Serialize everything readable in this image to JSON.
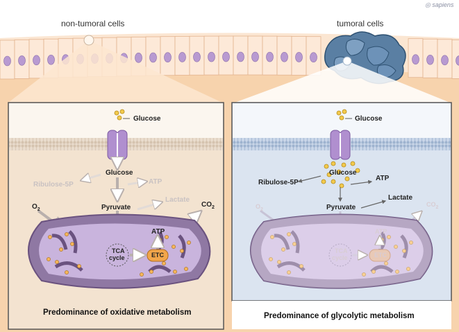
{
  "brand": "sapiens",
  "header": {
    "left_label": "non-tumoral cells",
    "right_label": "tumoral cells"
  },
  "left_panel": {
    "glucose_outside": "Glucose",
    "glucose_inside": "Glucose",
    "ribulose": "Ribulose-5P",
    "atp_glycolysis": "ATP",
    "lactate": "Lactate",
    "o2": "O",
    "o2_sub": "2",
    "pyruvate": "Pyruvate",
    "co2": "CO",
    "co2_sub": "2",
    "atp_mito": "ATP",
    "tca_line1": "TCA",
    "tca_line2": "cycle",
    "etc": "ETC",
    "caption": "Predominance of oxidative metabolism"
  },
  "right_panel": {
    "glucose_outside": "Glucose",
    "glucose_inside": "Glucose",
    "ribulose": "Ribulose-5P",
    "atp_glycolysis": "ATP",
    "lactate": "Lactate",
    "o2": "O",
    "o2_sub": "2",
    "pyruvate": "Pyruvate",
    "co2": "CO",
    "co2_sub": "2",
    "atp_mito": "ATP",
    "tca_line1": "TCA",
    "tca_line2": "cycle",
    "etc": "ETC",
    "caption": "Predominance of glycolytic metabolism"
  }
}
